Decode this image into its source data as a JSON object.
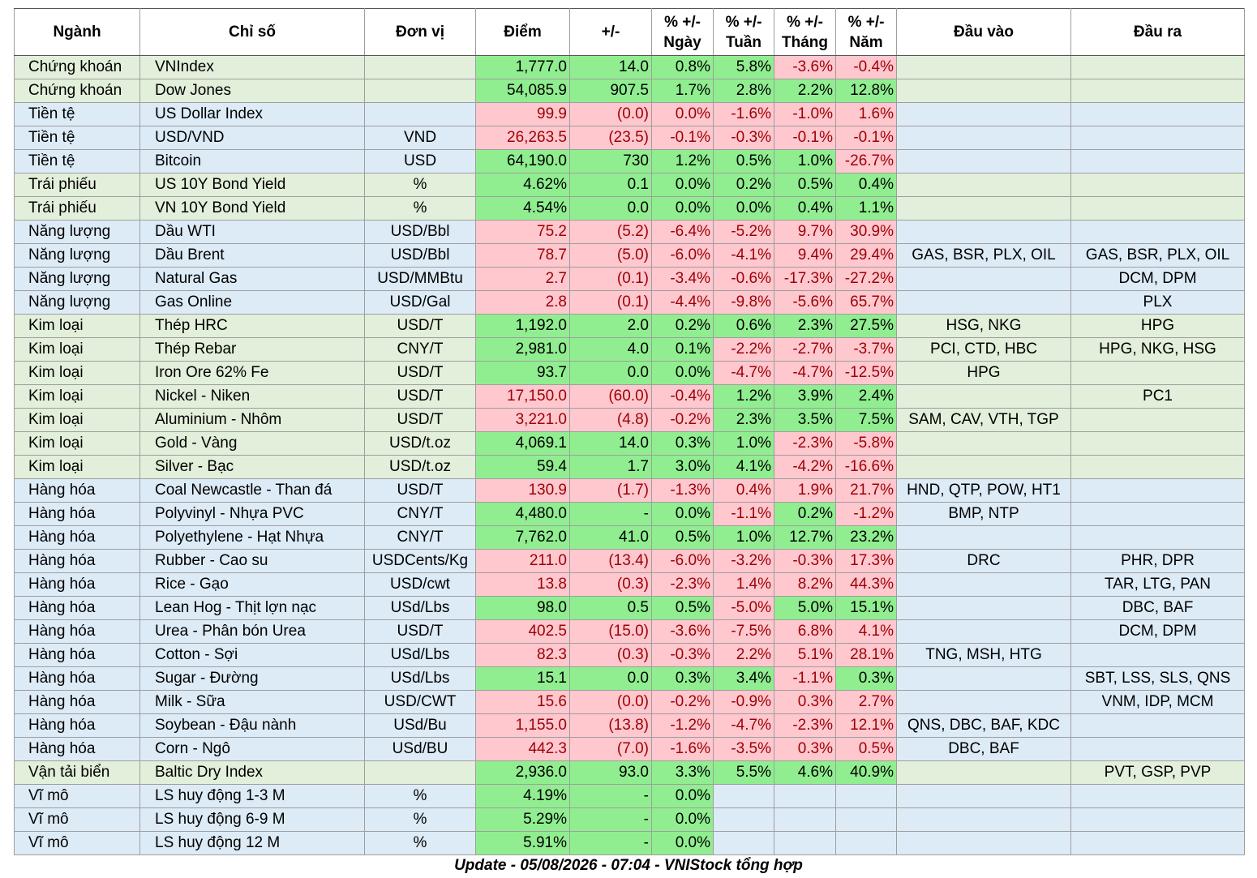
{
  "headers": [
    "Ngành",
    "Chỉ số",
    "Đơn vị",
    "Điểm",
    "+/-",
    "% +/-\nNgày",
    "% +/-\nTuần",
    "% +/-\nTháng",
    "% +/-\nNăm",
    "Đầu vào",
    "Đầu ra"
  ],
  "colors": {
    "positive_fill": "#90ee90",
    "negative_fill": "#ffc7ce",
    "negative_text": "#9c0006",
    "row_green": "#e2efda",
    "row_blue": "#ddebf7"
  },
  "rows": [
    {
      "sector": "Chứng khoán",
      "index": "VNIndex",
      "unit": "",
      "point": "1,777.0",
      "change": "14.0",
      "day": "0.8%",
      "week": "5.8%",
      "month": "-3.6%",
      "year": "-0.4%",
      "input": "",
      "output": "",
      "band": "green",
      "s": [
        "pos",
        "pos",
        "pos",
        "pos",
        "neg",
        "neg"
      ]
    },
    {
      "sector": "Chứng khoán",
      "index": "Dow Jones",
      "unit": "",
      "point": "54,085.9",
      "change": "907.5",
      "day": "1.7%",
      "week": "2.8%",
      "month": "2.2%",
      "year": "12.8%",
      "input": "",
      "output": "",
      "band": "green",
      "s": [
        "pos",
        "pos",
        "pos",
        "pos",
        "pos",
        "pos"
      ]
    },
    {
      "sector": "Tiền tệ",
      "index": "US Dollar Index",
      "unit": "",
      "point": "99.9",
      "change": "(0.0)",
      "day": "0.0%",
      "week": "-1.6%",
      "month": "-1.0%",
      "year": "1.6%",
      "input": "",
      "output": "",
      "band": "blue",
      "s": [
        "neg",
        "neg",
        "neg",
        "neg",
        "neg",
        "neg"
      ]
    },
    {
      "sector": "Tiền tệ",
      "index": "USD/VND",
      "unit": "VND",
      "point": "26,263.5",
      "change": "(23.5)",
      "day": "-0.1%",
      "week": "-0.3%",
      "month": "-0.1%",
      "year": "-0.1%",
      "input": "",
      "output": "",
      "band": "blue",
      "s": [
        "neg",
        "neg",
        "neg",
        "neg",
        "neg",
        "neg"
      ]
    },
    {
      "sector": "Tiền tệ",
      "index": "Bitcoin",
      "unit": "USD",
      "point": "64,190.0",
      "change": "730",
      "day": "1.2%",
      "week": "0.5%",
      "month": "1.0%",
      "year": "-26.7%",
      "input": "",
      "output": "",
      "band": "blue",
      "s": [
        "pos",
        "pos",
        "pos",
        "pos",
        "pos",
        "neg"
      ]
    },
    {
      "sector": "Trái phiếu",
      "index": "US 10Y Bond Yield",
      "unit": "%",
      "point": "4.62%",
      "change": "0.1",
      "day": "0.0%",
      "week": "0.2%",
      "month": "0.5%",
      "year": "0.4%",
      "input": "",
      "output": "",
      "band": "green",
      "s": [
        "pos",
        "pos",
        "pos",
        "pos",
        "pos",
        "pos"
      ]
    },
    {
      "sector": "Trái phiếu",
      "index": "VN 10Y Bond Yield",
      "unit": "%",
      "point": "4.54%",
      "change": "0.0",
      "day": "0.0%",
      "week": "0.0%",
      "month": "0.4%",
      "year": "1.1%",
      "input": "",
      "output": "",
      "band": "green",
      "s": [
        "pos",
        "pos",
        "pos",
        "pos",
        "pos",
        "pos"
      ]
    },
    {
      "sector": "Năng lượng",
      "index": "Dầu WTI",
      "unit": "USD/Bbl",
      "point": "75.2",
      "change": "(5.2)",
      "day": "-6.4%",
      "week": "-5.2%",
      "month": "9.7%",
      "year": "30.9%",
      "input": "",
      "output": "",
      "band": "blue",
      "s": [
        "neg",
        "neg",
        "neg",
        "neg",
        "neg",
        "neg"
      ]
    },
    {
      "sector": "Năng lượng",
      "index": "Dầu Brent",
      "unit": "USD/Bbl",
      "point": "78.7",
      "change": "(5.0)",
      "day": "-6.0%",
      "week": "-4.1%",
      "month": "9.4%",
      "year": "29.4%",
      "input": "GAS, BSR, PLX, OIL",
      "output": "GAS, BSR, PLX, OIL",
      "band": "blue",
      "s": [
        "neg",
        "neg",
        "neg",
        "neg",
        "neg",
        "neg"
      ]
    },
    {
      "sector": "Năng lượng",
      "index": "Natural Gas",
      "unit": "USD/MMBtu",
      "point": "2.7",
      "change": "(0.1)",
      "day": "-3.4%",
      "week": "-0.6%",
      "month": "-17.3%",
      "year": "-27.2%",
      "input": "",
      "output": "DCM, DPM",
      "band": "blue",
      "s": [
        "neg",
        "neg",
        "neg",
        "neg",
        "neg",
        "neg"
      ]
    },
    {
      "sector": "Năng lượng",
      "index": "Gas Online",
      "unit": "USD/Gal",
      "point": "2.8",
      "change": "(0.1)",
      "day": "-4.4%",
      "week": "-9.8%",
      "month": "-5.6%",
      "year": "65.7%",
      "input": "",
      "output": "PLX",
      "band": "blue",
      "s": [
        "neg",
        "neg",
        "neg",
        "neg",
        "neg",
        "neg"
      ]
    },
    {
      "sector": "Kim loại",
      "index": "Thép HRC",
      "unit": "USD/T",
      "point": "1,192.0",
      "change": "2.0",
      "day": "0.2%",
      "week": "0.6%",
      "month": "2.3%",
      "year": "27.5%",
      "input": "HSG, NKG",
      "output": "HPG",
      "band": "green",
      "s": [
        "pos",
        "pos",
        "pos",
        "pos",
        "pos",
        "pos"
      ]
    },
    {
      "sector": "Kim loại",
      "index": "Thép Rebar",
      "unit": "CNY/T",
      "point": "2,981.0",
      "change": "4.0",
      "day": "0.1%",
      "week": "-2.2%",
      "month": "-2.7%",
      "year": "-3.7%",
      "input": "PCI, CTD, HBC",
      "output": "HPG, NKG, HSG",
      "band": "green",
      "s": [
        "pos",
        "pos",
        "pos",
        "neg",
        "neg",
        "neg"
      ]
    },
    {
      "sector": "Kim loại",
      "index": "Iron Ore 62% Fe",
      "unit": "USD/T",
      "point": "93.7",
      "change": "0.0",
      "day": "0.0%",
      "week": "-4.7%",
      "month": "-4.7%",
      "year": "-12.5%",
      "input": "HPG",
      "output": "",
      "band": "green",
      "s": [
        "pos",
        "pos",
        "pos",
        "neg",
        "neg",
        "neg"
      ]
    },
    {
      "sector": "Kim loại",
      "index": "Nickel - Niken",
      "unit": "USD/T",
      "point": "17,150.0",
      "change": "(60.0)",
      "day": "-0.4%",
      "week": "1.2%",
      "month": "3.9%",
      "year": "2.4%",
      "input": "",
      "output": "PC1",
      "band": "green",
      "s": [
        "neg",
        "neg",
        "neg",
        "pos",
        "pos",
        "pos"
      ]
    },
    {
      "sector": "Kim loại",
      "index": "Aluminium - Nhôm",
      "unit": "USD/T",
      "point": "3,221.0",
      "change": "(4.8)",
      "day": "-0.2%",
      "week": "2.3%",
      "month": "3.5%",
      "year": "7.5%",
      "input": "SAM, CAV, VTH, TGP",
      "output": "",
      "band": "green",
      "s": [
        "neg",
        "neg",
        "neg",
        "pos",
        "pos",
        "pos"
      ]
    },
    {
      "sector": "Kim loại",
      "index": "Gold - Vàng",
      "unit": "USD/t.oz",
      "point": "4,069.1",
      "change": "14.0",
      "day": "0.3%",
      "week": "1.0%",
      "month": "-2.3%",
      "year": "-5.8%",
      "input": "",
      "output": "",
      "band": "green",
      "s": [
        "pos",
        "pos",
        "pos",
        "pos",
        "neg",
        "neg"
      ]
    },
    {
      "sector": "Kim loại",
      "index": "Silver - Bạc",
      "unit": "USD/t.oz",
      "point": "59.4",
      "change": "1.7",
      "day": "3.0%",
      "week": "4.1%",
      "month": "-4.2%",
      "year": "-16.6%",
      "input": "",
      "output": "",
      "band": "green",
      "s": [
        "pos",
        "pos",
        "pos",
        "pos",
        "neg",
        "neg"
      ]
    },
    {
      "sector": "Hàng hóa",
      "index": "Coal Newcastle - Than đá",
      "unit": "USD/T",
      "point": "130.9",
      "change": "(1.7)",
      "day": "-1.3%",
      "week": "0.4%",
      "month": "1.9%",
      "year": "21.7%",
      "input": "HND, QTP, POW, HT1",
      "output": "",
      "band": "blue",
      "s": [
        "neg",
        "neg",
        "neg",
        "neg",
        "neg",
        "neg"
      ]
    },
    {
      "sector": "Hàng hóa",
      "index": "Polyvinyl - Nhựa PVC",
      "unit": "CNY/T",
      "point": "4,480.0",
      "change": "-",
      "day": "0.0%",
      "week": "-1.1%",
      "month": "0.2%",
      "year": "-1.2%",
      "input": "BMP, NTP",
      "output": "",
      "band": "blue",
      "s": [
        "pos",
        "pos",
        "pos",
        "neg",
        "pos",
        "neg"
      ]
    },
    {
      "sector": "Hàng hóa",
      "index": "Polyethylene - Hạt Nhựa",
      "unit": "CNY/T",
      "point": "7,762.0",
      "change": "41.0",
      "day": "0.5%",
      "week": "1.0%",
      "month": "12.7%",
      "year": "23.2%",
      "input": "",
      "output": "",
      "band": "blue",
      "s": [
        "pos",
        "pos",
        "pos",
        "pos",
        "pos",
        "pos"
      ]
    },
    {
      "sector": "Hàng hóa",
      "index": "Rubber - Cao su",
      "unit": "USDCents/Kg",
      "point": "211.0",
      "change": "(13.4)",
      "day": "-6.0%",
      "week": "-3.2%",
      "month": "-0.3%",
      "year": "17.3%",
      "input": "DRC",
      "output": "PHR, DPR",
      "band": "blue",
      "s": [
        "neg",
        "neg",
        "neg",
        "neg",
        "neg",
        "neg"
      ]
    },
    {
      "sector": "Hàng hóa",
      "index": "Rice - Gạo",
      "unit": "USD/cwt",
      "point": "13.8",
      "change": "(0.3)",
      "day": "-2.3%",
      "week": "1.4%",
      "month": "8.2%",
      "year": "44.3%",
      "input": "",
      "output": "TAR, LTG, PAN",
      "band": "blue",
      "s": [
        "neg",
        "neg",
        "neg",
        "neg",
        "neg",
        "neg"
      ]
    },
    {
      "sector": "Hàng hóa",
      "index": "Lean Hog - Thịt lợn nạc",
      "unit": "USd/Lbs",
      "point": "98.0",
      "change": "0.5",
      "day": "0.5%",
      "week": "-5.0%",
      "month": "5.0%",
      "year": "15.1%",
      "input": "",
      "output": "DBC, BAF",
      "band": "blue",
      "s": [
        "pos",
        "pos",
        "pos",
        "neg",
        "pos",
        "pos"
      ]
    },
    {
      "sector": "Hàng hóa",
      "index": "Urea - Phân bón Urea",
      "unit": "USD/T",
      "point": "402.5",
      "change": "(15.0)",
      "day": "-3.6%",
      "week": "-7.5%",
      "month": "6.8%",
      "year": "4.1%",
      "input": "",
      "output": "DCM, DPM",
      "band": "blue",
      "s": [
        "neg",
        "neg",
        "neg",
        "neg",
        "neg",
        "neg"
      ]
    },
    {
      "sector": "Hàng hóa",
      "index": "Cotton - Sợi",
      "unit": "USd/Lbs",
      "point": "82.3",
      "change": "(0.3)",
      "day": "-0.3%",
      "week": "2.2%",
      "month": "5.1%",
      "year": "28.1%",
      "input": "TNG, MSH, HTG",
      "output": "",
      "band": "blue",
      "s": [
        "neg",
        "neg",
        "neg",
        "neg",
        "neg",
        "neg"
      ]
    },
    {
      "sector": "Hàng hóa",
      "index": "Sugar - Đường",
      "unit": "USd/Lbs",
      "point": "15.1",
      "change": "0.0",
      "day": "0.3%",
      "week": "3.4%",
      "month": "-1.1%",
      "year": "0.3%",
      "input": "",
      "output": "SBT, LSS, SLS, QNS",
      "band": "blue",
      "s": [
        "pos",
        "pos",
        "pos",
        "pos",
        "neg",
        "pos"
      ]
    },
    {
      "sector": "Hàng hóa",
      "index": "Milk - Sữa",
      "unit": "USD/CWT",
      "point": "15.6",
      "change": "(0.0)",
      "day": "-0.2%",
      "week": "-0.9%",
      "month": "0.3%",
      "year": "2.7%",
      "input": "",
      "output": "VNM, IDP, MCM",
      "band": "blue",
      "s": [
        "neg",
        "neg",
        "neg",
        "neg",
        "neg",
        "neg"
      ]
    },
    {
      "sector": "Hàng hóa",
      "index": "Soybean - Đậu nành",
      "unit": "USd/Bu",
      "point": "1,155.0",
      "change": "(13.8)",
      "day": "-1.2%",
      "week": "-4.7%",
      "month": "-2.3%",
      "year": "12.1%",
      "input": "QNS, DBC, BAF, KDC",
      "output": "",
      "band": "blue",
      "s": [
        "neg",
        "neg",
        "neg",
        "neg",
        "neg",
        "neg"
      ]
    },
    {
      "sector": "Hàng hóa",
      "index": "Corn - Ngô",
      "unit": "USd/BU",
      "point": "442.3",
      "change": "(7.0)",
      "day": "-1.6%",
      "week": "-3.5%",
      "month": "0.3%",
      "year": "0.5%",
      "input": "DBC, BAF",
      "output": "",
      "band": "blue",
      "s": [
        "neg",
        "neg",
        "neg",
        "neg",
        "neg",
        "neg"
      ]
    },
    {
      "sector": "Vận tải biển",
      "index": "Baltic Dry Index",
      "unit": "",
      "point": "2,936.0",
      "change": "93.0",
      "day": "3.3%",
      "week": "5.5%",
      "month": "4.6%",
      "year": "40.9%",
      "input": "",
      "output": "PVT, GSP, PVP",
      "band": "green",
      "s": [
        "pos",
        "pos",
        "pos",
        "pos",
        "pos",
        "pos"
      ]
    },
    {
      "sector": "Vĩ mô",
      "index": "LS huy động 1-3 M",
      "unit": "%",
      "point": "4.19%",
      "change": "-",
      "day": "0.0%",
      "week": "",
      "month": "",
      "year": "",
      "input": "",
      "output": "",
      "band": "blue",
      "s": [
        "pos",
        "pos",
        "pos",
        "pos",
        "pos",
        "pos"
      ]
    },
    {
      "sector": "Vĩ mô",
      "index": "LS huy động 6-9 M",
      "unit": "%",
      "point": "5.29%",
      "change": "-",
      "day": "0.0%",
      "week": "",
      "month": "",
      "year": "",
      "input": "",
      "output": "",
      "band": "blue",
      "s": [
        "pos",
        "pos",
        "pos",
        "pos",
        "pos",
        "pos"
      ]
    },
    {
      "sector": "Vĩ mô",
      "index": "LS huy động 12 M",
      "unit": "%",
      "point": "5.91%",
      "change": "-",
      "day": "0.0%",
      "week": "",
      "month": "",
      "year": "",
      "input": "",
      "output": "",
      "band": "blue",
      "s": [
        "pos",
        "pos",
        "pos",
        "pos",
        "pos",
        "pos"
      ]
    }
  ],
  "footer": "Update - 05/08/2026 - 07:04 - VNIStock tổng hợp"
}
